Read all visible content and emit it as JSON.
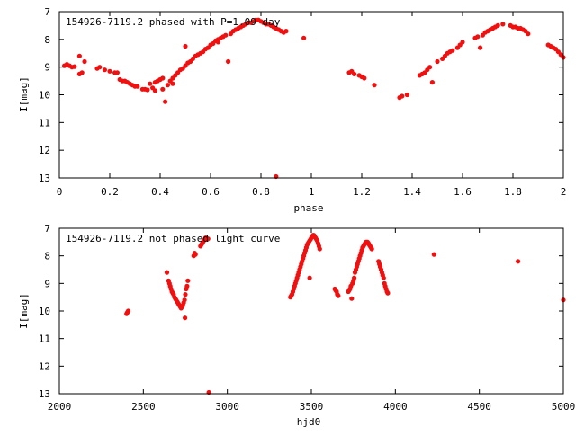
{
  "chart_data": [
    {
      "type": "scatter",
      "title": "154926-7119.2 phased with P=1.09 day",
      "xlabel": "phase",
      "ylabel": "I[mag]",
      "xlim": [
        0,
        2
      ],
      "ylim": [
        7,
        13
      ],
      "y_inverted": true,
      "grid": false,
      "marker_color": "#f01010",
      "x_ticks": [
        "0",
        "0.2",
        "0.4",
        "0.6",
        "0.8",
        "1",
        "1.2",
        "1.4",
        "1.6",
        "1.8",
        "2"
      ],
      "y_ticks": [
        "7",
        "8",
        "9",
        "10",
        "11",
        "12",
        "13"
      ],
      "points": [
        [
          0.02,
          8.95
        ],
        [
          0.03,
          8.9
        ],
        [
          0.04,
          8.95
        ],
        [
          0.05,
          9.0
        ],
        [
          0.06,
          8.98
        ],
        [
          0.08,
          9.25
        ],
        [
          0.09,
          9.2
        ],
        [
          0.08,
          8.6
        ],
        [
          0.1,
          8.8
        ],
        [
          0.15,
          9.05
        ],
        [
          0.16,
          9.0
        ],
        [
          0.18,
          9.1
        ],
        [
          0.2,
          9.15
        ],
        [
          0.22,
          9.2
        ],
        [
          0.23,
          9.2
        ],
        [
          0.24,
          9.45
        ],
        [
          0.25,
          9.5
        ],
        [
          0.26,
          9.5
        ],
        [
          0.27,
          9.55
        ],
        [
          0.28,
          9.6
        ],
        [
          0.29,
          9.65
        ],
        [
          0.3,
          9.7
        ],
        [
          0.31,
          9.7
        ],
        [
          0.33,
          9.8
        ],
        [
          0.34,
          9.8
        ],
        [
          0.35,
          9.82
        ],
        [
          0.36,
          9.6
        ],
        [
          0.37,
          9.75
        ],
        [
          0.38,
          9.85
        ],
        [
          0.38,
          9.55
        ],
        [
          0.39,
          9.5
        ],
        [
          0.4,
          9.45
        ],
        [
          0.41,
          9.4
        ],
        [
          0.41,
          9.8
        ],
        [
          0.42,
          10.25
        ],
        [
          0.43,
          9.65
        ],
        [
          0.44,
          9.5
        ],
        [
          0.45,
          9.4
        ],
        [
          0.45,
          9.6
        ],
        [
          0.46,
          9.3
        ],
        [
          0.47,
          9.2
        ],
        [
          0.48,
          9.1
        ],
        [
          0.49,
          9.05
        ],
        [
          0.5,
          8.95
        ],
        [
          0.51,
          8.85
        ],
        [
          0.52,
          8.8
        ],
        [
          0.53,
          8.7
        ],
        [
          0.54,
          8.6
        ],
        [
          0.55,
          8.55
        ],
        [
          0.56,
          8.5
        ],
        [
          0.57,
          8.45
        ],
        [
          0.58,
          8.35
        ],
        [
          0.59,
          8.3
        ],
        [
          0.6,
          8.2
        ],
        [
          0.61,
          8.15
        ],
        [
          0.62,
          8.05
        ],
        [
          0.63,
          8.0
        ],
        [
          0.64,
          7.95
        ],
        [
          0.65,
          7.9
        ],
        [
          0.66,
          7.85
        ],
        [
          0.67,
          8.8
        ],
        [
          0.68,
          7.8
        ],
        [
          0.69,
          7.7
        ],
        [
          0.7,
          7.65
        ],
        [
          0.71,
          7.6
        ],
        [
          0.72,
          7.55
        ],
        [
          0.73,
          7.5
        ],
        [
          0.74,
          7.45
        ],
        [
          0.75,
          7.4
        ],
        [
          0.76,
          7.4
        ],
        [
          0.77,
          7.35
        ],
        [
          0.78,
          7.3
        ],
        [
          0.79,
          7.3
        ],
        [
          0.8,
          7.35
        ],
        [
          0.81,
          7.4
        ],
        [
          0.82,
          7.45
        ],
        [
          0.83,
          7.45
        ],
        [
          0.84,
          7.5
        ],
        [
          0.85,
          7.55
        ],
        [
          0.86,
          7.6
        ],
        [
          0.87,
          7.65
        ],
        [
          0.88,
          7.7
        ],
        [
          0.89,
          7.75
        ],
        [
          0.9,
          7.7
        ],
        [
          0.5,
          8.25
        ],
        [
          0.63,
          8.1
        ],
        [
          0.86,
          12.95
        ],
        [
          0.97,
          7.95
        ],
        [
          1.15,
          9.2
        ],
        [
          1.16,
          9.15
        ],
        [
          1.17,
          9.25
        ],
        [
          1.19,
          9.3
        ],
        [
          1.2,
          9.35
        ],
        [
          1.21,
          9.4
        ],
        [
          1.25,
          9.65
        ],
        [
          1.35,
          10.1
        ],
        [
          1.36,
          10.05
        ],
        [
          1.38,
          10.0
        ],
        [
          1.43,
          9.3
        ],
        [
          1.44,
          9.25
        ],
        [
          1.45,
          9.2
        ],
        [
          1.46,
          9.1
        ],
        [
          1.47,
          9.0
        ],
        [
          1.48,
          9.55
        ],
        [
          1.5,
          8.8
        ],
        [
          1.52,
          8.7
        ],
        [
          1.53,
          8.6
        ],
        [
          1.54,
          8.5
        ],
        [
          1.55,
          8.45
        ],
        [
          1.56,
          8.4
        ],
        [
          1.58,
          8.3
        ],
        [
          1.59,
          8.2
        ],
        [
          1.6,
          8.1
        ],
        [
          1.65,
          7.95
        ],
        [
          1.66,
          7.9
        ],
        [
          1.67,
          8.3
        ],
        [
          1.68,
          7.85
        ],
        [
          1.69,
          7.75
        ],
        [
          1.7,
          7.7
        ],
        [
          1.71,
          7.65
        ],
        [
          1.72,
          7.6
        ],
        [
          1.73,
          7.55
        ],
        [
          1.74,
          7.5
        ],
        [
          1.76,
          7.45
        ],
        [
          1.79,
          7.5
        ],
        [
          1.8,
          7.55
        ],
        [
          1.81,
          7.55
        ],
        [
          1.82,
          7.6
        ],
        [
          1.83,
          7.6
        ],
        [
          1.84,
          7.65
        ],
        [
          1.85,
          7.7
        ],
        [
          1.86,
          7.8
        ],
        [
          1.94,
          8.2
        ],
        [
          1.95,
          8.25
        ],
        [
          1.96,
          8.3
        ],
        [
          1.97,
          8.35
        ],
        [
          1.98,
          8.45
        ],
        [
          1.99,
          8.55
        ],
        [
          2.0,
          8.65
        ]
      ]
    },
    {
      "type": "scatter",
      "title": "154926-7119.2 not phased light curve",
      "xlabel": "hjd0",
      "ylabel": "I[mag]",
      "xlim": [
        2000,
        5000
      ],
      "ylim": [
        7,
        13
      ],
      "y_inverted": true,
      "grid": false,
      "marker_color": "#f01010",
      "x_ticks": [
        "2000",
        "2500",
        "3000",
        "3500",
        "4000",
        "4500",
        "5000"
      ],
      "y_ticks": [
        "7",
        "8",
        "9",
        "10",
        "11",
        "12",
        "13"
      ],
      "points": [
        [
          2400,
          10.1
        ],
        [
          2405,
          10.05
        ],
        [
          2410,
          10.0
        ],
        [
          2640,
          8.6
        ],
        [
          2650,
          8.9
        ],
        [
          2655,
          9.0
        ],
        [
          2660,
          9.1
        ],
        [
          2665,
          9.2
        ],
        [
          2670,
          9.3
        ],
        [
          2675,
          9.35
        ],
        [
          2680,
          9.4
        ],
        [
          2685,
          9.5
        ],
        [
          2690,
          9.55
        ],
        [
          2695,
          9.6
        ],
        [
          2700,
          9.65
        ],
        [
          2705,
          9.7
        ],
        [
          2710,
          9.75
        ],
        [
          2715,
          9.8
        ],
        [
          2720,
          9.85
        ],
        [
          2725,
          9.9
        ],
        [
          2730,
          9.85
        ],
        [
          2735,
          9.8
        ],
        [
          2740,
          9.7
        ],
        [
          2745,
          9.6
        ],
        [
          2748,
          10.25
        ],
        [
          2750,
          9.4
        ],
        [
          2755,
          9.2
        ],
        [
          2760,
          9.1
        ],
        [
          2765,
          8.9
        ],
        [
          2800,
          8.0
        ],
        [
          2805,
          7.9
        ],
        [
          2810,
          7.95
        ],
        [
          2840,
          7.65
        ],
        [
          2845,
          7.6
        ],
        [
          2850,
          7.55
        ],
        [
          2855,
          7.5
        ],
        [
          2860,
          7.45
        ],
        [
          2865,
          7.4
        ],
        [
          2870,
          7.35
        ],
        [
          2875,
          7.35
        ],
        [
          2880,
          7.4
        ],
        [
          2885,
          7.38
        ],
        [
          2890,
          12.95
        ],
        [
          3375,
          9.5
        ],
        [
          3380,
          9.45
        ],
        [
          3385,
          9.4
        ],
        [
          3390,
          9.3
        ],
        [
          3395,
          9.2
        ],
        [
          3400,
          9.1
        ],
        [
          3405,
          9.0
        ],
        [
          3410,
          8.9
        ],
        [
          3415,
          8.8
        ],
        [
          3420,
          8.7
        ],
        [
          3425,
          8.6
        ],
        [
          3430,
          8.5
        ],
        [
          3435,
          8.4
        ],
        [
          3440,
          8.3
        ],
        [
          3445,
          8.2
        ],
        [
          3450,
          8.1
        ],
        [
          3455,
          8.0
        ],
        [
          3460,
          7.9
        ],
        [
          3465,
          7.8
        ],
        [
          3470,
          7.7
        ],
        [
          3475,
          7.6
        ],
        [
          3480,
          7.55
        ],
        [
          3485,
          7.5
        ],
        [
          3490,
          7.45
        ],
        [
          3495,
          7.4
        ],
        [
          3500,
          7.35
        ],
        [
          3505,
          7.3
        ],
        [
          3510,
          7.25
        ],
        [
          3515,
          7.25
        ],
        [
          3520,
          7.3
        ],
        [
          3525,
          7.35
        ],
        [
          3530,
          7.4
        ],
        [
          3535,
          7.45
        ],
        [
          3540,
          7.55
        ],
        [
          3545,
          7.65
        ],
        [
          3550,
          7.75
        ],
        [
          3490,
          8.8
        ],
        [
          3640,
          9.2
        ],
        [
          3645,
          9.25
        ],
        [
          3650,
          9.3
        ],
        [
          3655,
          9.4
        ],
        [
          3660,
          9.45
        ],
        [
          3720,
          9.3
        ],
        [
          3725,
          9.25
        ],
        [
          3730,
          9.2
        ],
        [
          3735,
          9.1
        ],
        [
          3740,
          9.55
        ],
        [
          3745,
          9.0
        ],
        [
          3750,
          8.9
        ],
        [
          3755,
          8.8
        ],
        [
          3760,
          8.6
        ],
        [
          3765,
          8.5
        ],
        [
          3770,
          8.4
        ],
        [
          3775,
          8.3
        ],
        [
          3780,
          8.2
        ],
        [
          3785,
          8.1
        ],
        [
          3790,
          8.0
        ],
        [
          3795,
          7.9
        ],
        [
          3800,
          7.8
        ],
        [
          3805,
          7.7
        ],
        [
          3810,
          7.65
        ],
        [
          3815,
          7.6
        ],
        [
          3820,
          7.55
        ],
        [
          3825,
          7.5
        ],
        [
          3830,
          7.5
        ],
        [
          3835,
          7.5
        ],
        [
          3840,
          7.55
        ],
        [
          3845,
          7.6
        ],
        [
          3850,
          7.65
        ],
        [
          3855,
          7.7
        ],
        [
          3860,
          7.75
        ],
        [
          3900,
          8.2
        ],
        [
          3905,
          8.3
        ],
        [
          3910,
          8.4
        ],
        [
          3915,
          8.5
        ],
        [
          3920,
          8.6
        ],
        [
          3925,
          8.7
        ],
        [
          3930,
          8.8
        ],
        [
          3935,
          9.0
        ],
        [
          3940,
          9.1
        ],
        [
          3945,
          9.2
        ],
        [
          3950,
          9.3
        ],
        [
          3955,
          9.35
        ],
        [
          4230,
          7.95
        ],
        [
          4730,
          8.2
        ],
        [
          5000,
          9.6
        ]
      ]
    }
  ]
}
